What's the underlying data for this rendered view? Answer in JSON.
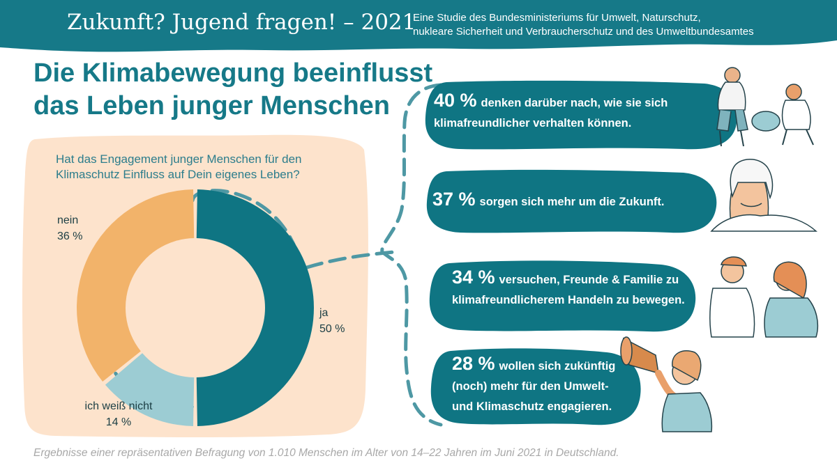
{
  "colors": {
    "teal_dark": "#0f7583",
    "teal_light": "#9cccd3",
    "orange": "#f2b36a",
    "panel": "#fde3cc",
    "text_dark": "#1b3e44"
  },
  "banner": {
    "title": "Zukunft? Jugend fragen! – 2021",
    "subtitle_line1": "Eine Studie des Bundesministeriums für Umwelt, Naturschutz,",
    "subtitle_line2": "nukleare Sicherheit und Verbraucherschutz und des Umweltbundesamtes"
  },
  "headline": {
    "line1": "Die Klimabewegung beeinflusst",
    "line2": "das Leben junger Menschen"
  },
  "chart_data": {
    "type": "pie",
    "title": "Hat das Engagement junger Menschen für den Klimaschutz Einfluss auf Dein eigenes Leben?",
    "title_line1": "Hat das Engagement junger Menschen für den",
    "title_line2": "Klimaschutz Einfluss auf Dein eigenes Leben?",
    "categories": [
      "ja",
      "ich weiß nicht",
      "nein"
    ],
    "values": [
      50,
      14,
      36
    ],
    "value_labels": [
      "50 %",
      "14 %",
      "36 %"
    ],
    "colors": [
      "#0f7583",
      "#9cccd3",
      "#f2b36a"
    ]
  },
  "stats": [
    {
      "pct": "40 %",
      "line1": "denken darüber nach, wie sie sich",
      "line2": "klimafreundlicher verhalten können.",
      "line3": ""
    },
    {
      "pct": "37 %",
      "line1": "sorgen sich mehr um die Zukunft.",
      "line2": "",
      "line3": ""
    },
    {
      "pct": "34 %",
      "line1": "versuchen, Freunde & Familie zu",
      "line2": "klimafreundlicherem Handeln zu bewegen.",
      "line3": ""
    },
    {
      "pct": "28 %",
      "line1": "wollen sich zukünftig",
      "line2": "(noch) mehr für den Umwelt-",
      "line3": "und Klimaschutz engagieren."
    }
  ],
  "footnote": "Ergebnisse einer repräsentativen Befragung von 1.010 Menschen im Alter von 14–22 Jahren im Juni 2021 in Deutschland."
}
